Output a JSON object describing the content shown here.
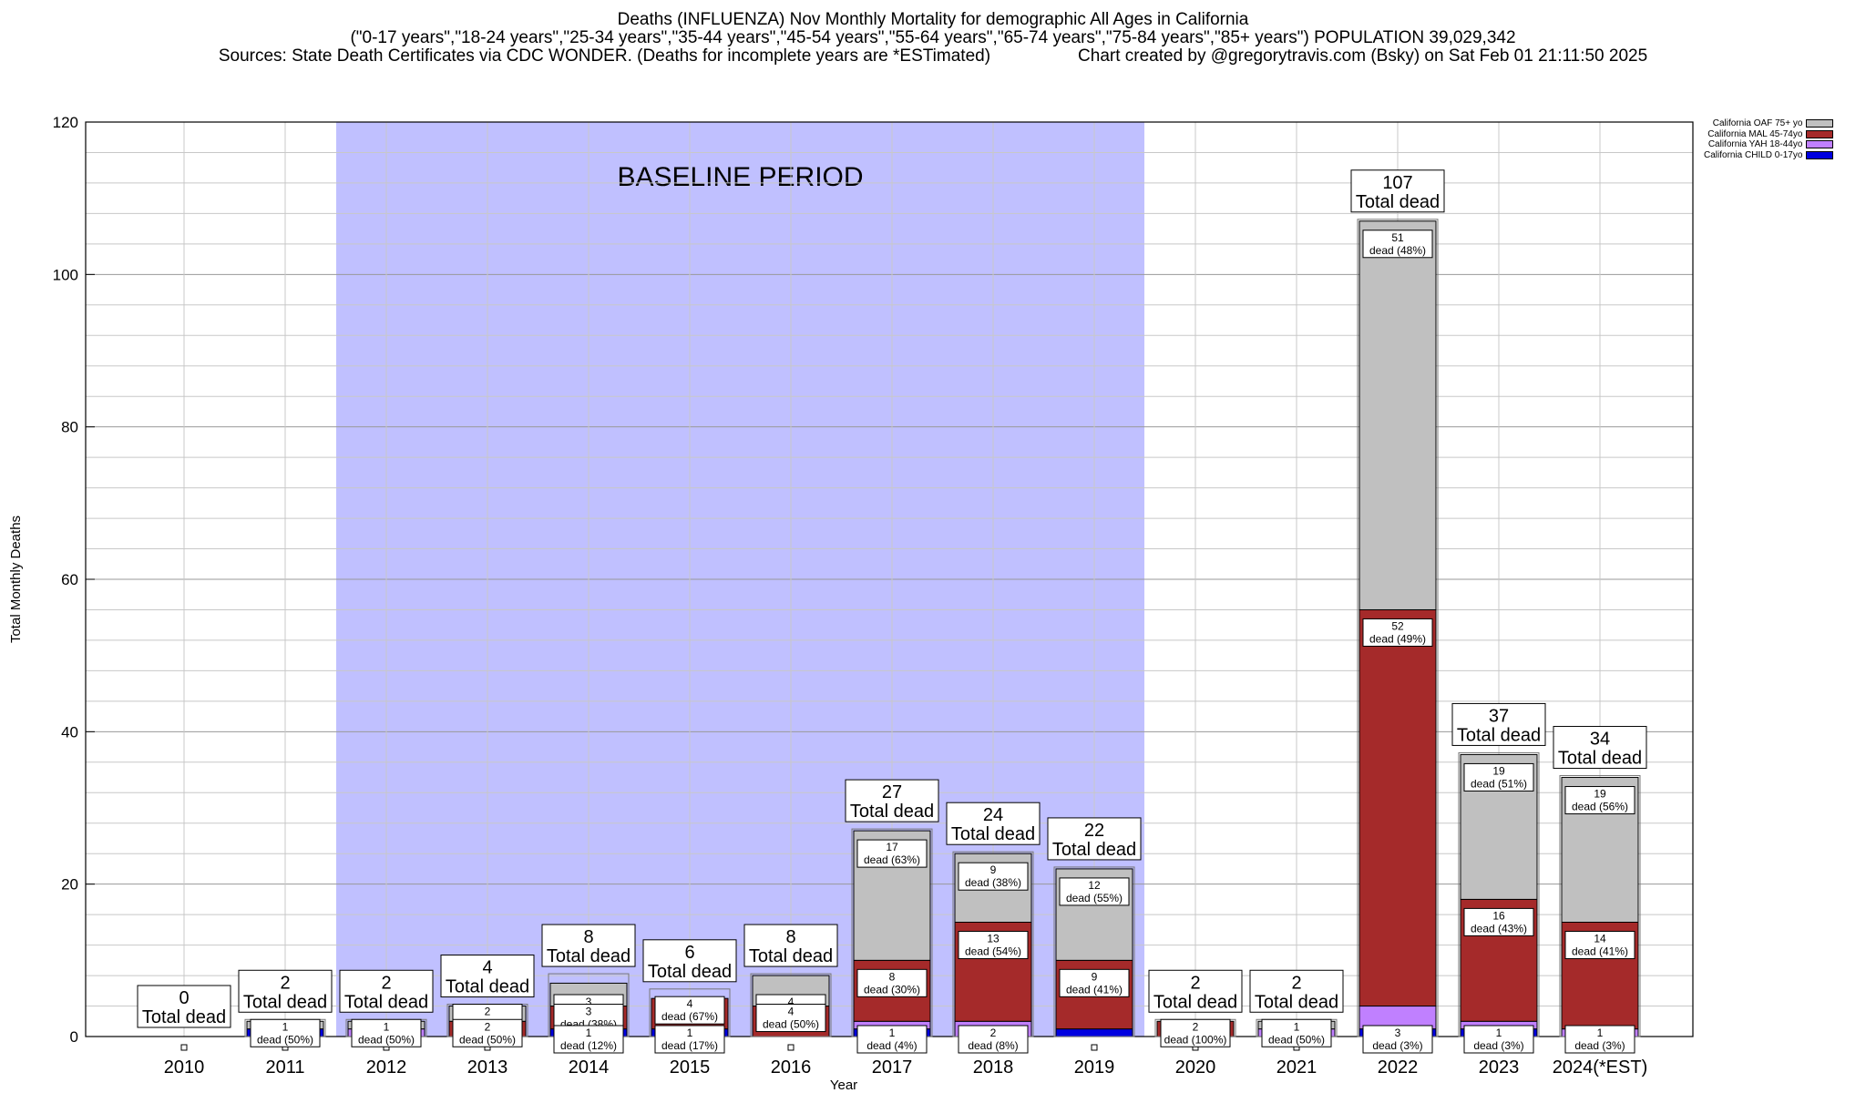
{
  "titles": {
    "line1": "Deaths (INFLUENZA) Nov Monthly Mortality for demographic All Ages in California",
    "line2": "(\"0-17 years\",\"18-24 years\",\"25-34 years\",\"35-44 years\",\"45-54 years\",\"55-64 years\",\"65-74 years\",\"75-84 years\",\"85+ years\") POPULATION 39,029,342",
    "line3a": "Sources: State Death Certificates via CDC WONDER. (Deaths for incomplete years are *ESTimated)",
    "line3b": "Chart created by @gregorytravis.com (Bsky) on Sat Feb 01 21:11:50 2025"
  },
  "legend": [
    {
      "label": "California OAF 75+ yo",
      "color": "#c0c0c0"
    },
    {
      "label": "California MAL 45-74yo",
      "color": "#a52a2a"
    },
    {
      "label": "California YAH 18-44yo",
      "color": "#c080ff"
    },
    {
      "label": "California CHILD 0-17yo",
      "color": "#0000e0"
    }
  ],
  "chart_data": {
    "type": "bar",
    "stacked": true,
    "xlabel": "Year",
    "ylabel": "Total Monthly Deaths",
    "ylim": [
      0,
      120
    ],
    "yticks": [
      0,
      20,
      40,
      60,
      80,
      100,
      120
    ],
    "grid": true,
    "legend_position": "top-right",
    "baseline_label": "BASELINE PERIOD",
    "baseline_range": [
      "2012",
      "2019"
    ],
    "total_suffix": "Total dead",
    "categories": [
      "2010",
      "2011",
      "2012",
      "2013",
      "2014",
      "2015",
      "2016",
      "2017",
      "2018",
      "2019",
      "2020",
      "2021",
      "2022",
      "2023",
      "2024(*EST)"
    ],
    "series": [
      {
        "name": "California CHILD 0-17yo",
        "color": "#0000e0",
        "values": [
          0,
          1,
          0,
          0,
          1,
          1,
          0,
          1,
          0,
          1,
          0,
          0,
          1,
          1,
          0
        ]
      },
      {
        "name": "California YAH 18-44yo",
        "color": "#c080ff",
        "values": [
          0,
          0,
          1,
          0,
          0,
          0,
          0,
          1,
          2,
          0,
          0,
          1,
          3,
          1,
          1
        ]
      },
      {
        "name": "California MAL 45-74yo",
        "color": "#a52a2a",
        "values": [
          0,
          0,
          0,
          2,
          3,
          4,
          4,
          8,
          13,
          9,
          2,
          0,
          52,
          16,
          14
        ]
      },
      {
        "name": "California OAF 75+ yo",
        "color": "#c0c0c0",
        "values": [
          0,
          1,
          1,
          2,
          3,
          0,
          4,
          17,
          9,
          12,
          0,
          1,
          51,
          19,
          19
        ]
      }
    ],
    "totals": [
      0,
      2,
      2,
      4,
      8,
      6,
      8,
      27,
      24,
      22,
      2,
      2,
      107,
      37,
      34
    ],
    "segment_labels": [
      [],
      [
        {
          "series": 3,
          "n": "1",
          "pct": "dead (50%)"
        }
      ],
      [
        {
          "series": 3,
          "n": "1",
          "pct": "dead (50%)"
        }
      ],
      [
        {
          "series": 3,
          "n": "2",
          "pct": "dead (50%)"
        },
        {
          "series": 2,
          "n": "2",
          "pct": "dead (50%)"
        }
      ],
      [
        {
          "series": 3,
          "n": "3",
          "pct": "dead (38%)"
        },
        {
          "series": 2,
          "n": "3",
          "pct": "dead (38%)"
        },
        {
          "series": 0,
          "n": "1",
          "pct": "dead (12%)"
        }
      ],
      [
        {
          "series": 2,
          "n": "4",
          "pct": "dead (67%)"
        },
        {
          "series": 0,
          "n": "1",
          "pct": "dead (17%)"
        }
      ],
      [
        {
          "series": 3,
          "n": "4",
          "pct": "dead (50%)"
        },
        {
          "series": 2,
          "n": "4",
          "pct": "dead (50%)"
        }
      ],
      [
        {
          "series": 3,
          "n": "17",
          "pct": "dead (63%)"
        },
        {
          "series": 2,
          "n": "8",
          "pct": "dead (30%)"
        },
        {
          "series": 0,
          "n": "1",
          "pct": "dead (4%)"
        }
      ],
      [
        {
          "series": 3,
          "n": "9",
          "pct": "dead (38%)"
        },
        {
          "series": 2,
          "n": "13",
          "pct": "dead (54%)"
        },
        {
          "series": 1,
          "n": "2",
          "pct": "dead (8%)"
        }
      ],
      [
        {
          "series": 3,
          "n": "12",
          "pct": "dead (55%)"
        },
        {
          "series": 2,
          "n": "9",
          "pct": "dead (41%)"
        }
      ],
      [
        {
          "series": 2,
          "n": "2",
          "pct": "dead (100%)"
        }
      ],
      [
        {
          "series": 3,
          "n": "1",
          "pct": "dead (50%)"
        }
      ],
      [
        {
          "series": 3,
          "n": "51",
          "pct": "dead (48%)"
        },
        {
          "series": 2,
          "n": "52",
          "pct": "dead (49%)"
        },
        {
          "series": 1,
          "n": "3",
          "pct": "dead (3%)"
        }
      ],
      [
        {
          "series": 3,
          "n": "19",
          "pct": "dead (51%)"
        },
        {
          "series": 2,
          "n": "16",
          "pct": "dead (43%)"
        },
        {
          "series": 0,
          "n": "1",
          "pct": "dead (3%)"
        }
      ],
      [
        {
          "series": 3,
          "n": "19",
          "pct": "dead (56%)"
        },
        {
          "series": 2,
          "n": "14",
          "pct": "dead (41%)"
        },
        {
          "series": 1,
          "n": "1",
          "pct": "dead (3%)"
        }
      ]
    ]
  }
}
